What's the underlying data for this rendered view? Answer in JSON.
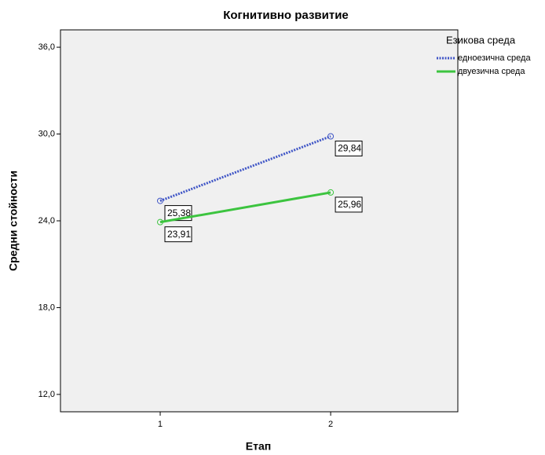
{
  "chart_data": {
    "type": "line",
    "title": "Когнитивно развитие",
    "x_label": "Етап",
    "y_label": "Средни стойности",
    "legend_title": "Езикова среда",
    "x": [
      1,
      2
    ],
    "xlim": [
      0.415,
      2.746
    ],
    "xticks": [
      1,
      2
    ],
    "ylim": [
      10.8,
      37.2
    ],
    "yticks": [
      {
        "value": 12,
        "label": "12,0"
      },
      {
        "value": 18,
        "label": "18,0"
      },
      {
        "value": 24,
        "label": "24,0"
      },
      {
        "value": 30,
        "label": "30,0"
      },
      {
        "value": 36,
        "label": "36,0"
      }
    ],
    "legend": "right-outside",
    "series": [
      {
        "name": "едноезична среда",
        "color": "#3f55c6",
        "dash": "dotted",
        "values": [
          25.38,
          29.84
        ],
        "value_labels": [
          "25,38",
          "29,84"
        ]
      },
      {
        "name": "двуезична среда",
        "color": "#3cc43f",
        "dash": "solid",
        "values": [
          23.91,
          25.96
        ],
        "value_labels": [
          "23,91",
          "25,96"
        ]
      }
    ]
  }
}
